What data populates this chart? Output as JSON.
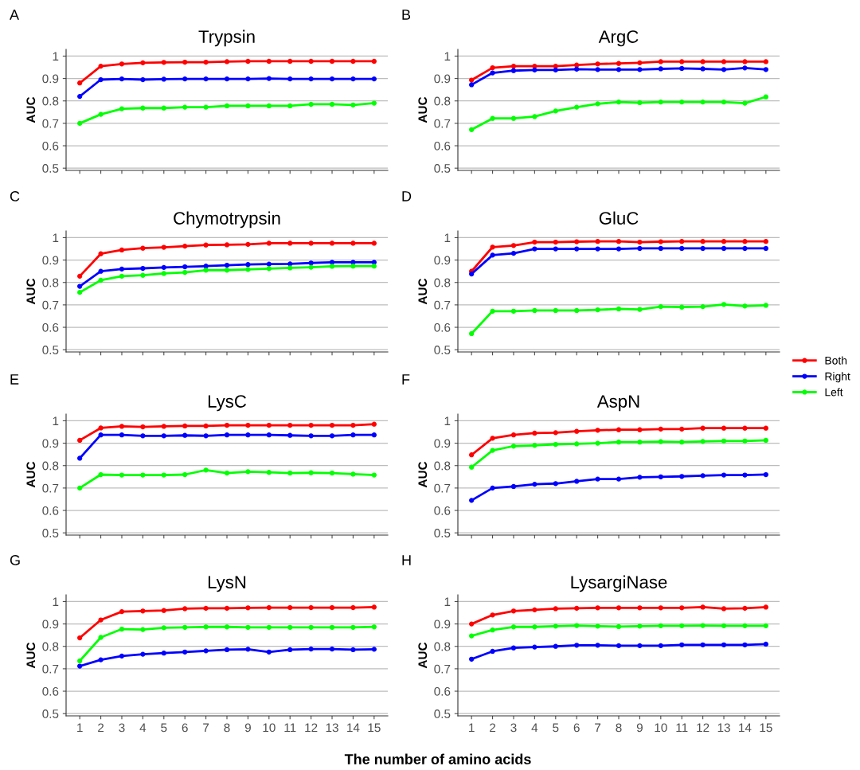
{
  "chart_data": [
    {
      "type": "line",
      "title": "Trypsin",
      "ylabel": "AUC",
      "annotations": [
        "A"
      ],
      "x": [
        1,
        2,
        3,
        4,
        5,
        6,
        7,
        8,
        9,
        10,
        11,
        12,
        13,
        14,
        15
      ],
      "xlim": [
        0.35,
        15.65
      ],
      "xticks": [
        1,
        2,
        3,
        4,
        5,
        6,
        7,
        8,
        9,
        10,
        11,
        12,
        13,
        14,
        15
      ],
      "ylim": [
        0.49,
        1.03
      ],
      "yticks": [
        0.5,
        0.6,
        0.7,
        0.8,
        0.9,
        1
      ],
      "grid": "y",
      "marker": "circle",
      "tick_labels": "y",
      "legend": "right",
      "series": [
        {
          "name": "Both",
          "color": "#ff0000",
          "values": [
            0.88,
            0.955,
            0.965,
            0.97,
            0.972,
            0.973,
            0.973,
            0.975,
            0.977,
            0.977,
            0.977,
            0.977,
            0.977,
            0.977,
            0.977
          ]
        },
        {
          "name": "Right",
          "color": "#0000ff",
          "values": [
            0.82,
            0.895,
            0.898,
            0.895,
            0.897,
            0.898,
            0.898,
            0.898,
            0.898,
            0.9,
            0.898,
            0.898,
            0.898,
            0.898,
            0.898
          ]
        },
        {
          "name": "Left",
          "color": "#00ff00",
          "values": [
            0.7,
            0.74,
            0.765,
            0.768,
            0.768,
            0.772,
            0.772,
            0.778,
            0.778,
            0.778,
            0.778,
            0.785,
            0.785,
            0.782,
            0.79
          ]
        }
      ]
    },
    {
      "type": "line",
      "title": "ArgC",
      "ylabel": "AUC",
      "annotations": [
        "B"
      ],
      "x": [
        1,
        2,
        3,
        4,
        5,
        6,
        7,
        8,
        9,
        10,
        11,
        12,
        13,
        14,
        15
      ],
      "xlim": [
        0.35,
        15.65
      ],
      "xticks": [
        1,
        2,
        3,
        4,
        5,
        6,
        7,
        8,
        9,
        10,
        11,
        12,
        13,
        14,
        15
      ],
      "ylim": [
        0.49,
        1.03
      ],
      "yticks": [
        0.5,
        0.6,
        0.7,
        0.8,
        0.9,
        1
      ],
      "grid": "y",
      "marker": "circle",
      "tick_labels": "y",
      "series": [
        {
          "color": "#ff0000",
          "values": [
            0.893,
            0.948,
            0.955,
            0.955,
            0.955,
            0.96,
            0.965,
            0.967,
            0.97,
            0.975,
            0.975,
            0.975,
            0.975,
            0.975,
            0.975
          ]
        },
        {
          "color": "#0000ff",
          "values": [
            0.872,
            0.925,
            0.935,
            0.938,
            0.938,
            0.942,
            0.94,
            0.94,
            0.94,
            0.943,
            0.945,
            0.943,
            0.94,
            0.947,
            0.94
          ]
        },
        {
          "color": "#00ff00",
          "values": [
            0.672,
            0.722,
            0.722,
            0.73,
            0.755,
            0.772,
            0.787,
            0.795,
            0.792,
            0.795,
            0.795,
            0.795,
            0.795,
            0.79,
            0.818
          ]
        }
      ]
    },
    {
      "type": "line",
      "title": "Chymotrypsin",
      "ylabel": "AUC",
      "annotations": [
        "C"
      ],
      "x": [
        1,
        2,
        3,
        4,
        5,
        6,
        7,
        8,
        9,
        10,
        11,
        12,
        13,
        14,
        15
      ],
      "xlim": [
        0.35,
        15.65
      ],
      "xticks": [
        1,
        2,
        3,
        4,
        5,
        6,
        7,
        8,
        9,
        10,
        11,
        12,
        13,
        14,
        15
      ],
      "ylim": [
        0.49,
        1.03
      ],
      "yticks": [
        0.5,
        0.6,
        0.7,
        0.8,
        0.9,
        1
      ],
      "grid": "y",
      "marker": "circle",
      "tick_labels": "y",
      "series": [
        {
          "color": "#ff0000",
          "values": [
            0.828,
            0.928,
            0.945,
            0.953,
            0.957,
            0.962,
            0.967,
            0.968,
            0.97,
            0.975,
            0.975,
            0.975,
            0.975,
            0.975,
            0.975
          ]
        },
        {
          "color": "#0000ff",
          "values": [
            0.783,
            0.85,
            0.86,
            0.863,
            0.867,
            0.87,
            0.873,
            0.877,
            0.88,
            0.882,
            0.883,
            0.887,
            0.89,
            0.89,
            0.89
          ]
        },
        {
          "color": "#00ff00",
          "values": [
            0.756,
            0.81,
            0.828,
            0.832,
            0.84,
            0.845,
            0.855,
            0.855,
            0.858,
            0.862,
            0.865,
            0.868,
            0.872,
            0.873,
            0.873
          ]
        }
      ]
    },
    {
      "type": "line",
      "title": "GluC",
      "ylabel": "AUC",
      "annotations": [
        "D"
      ],
      "x": [
        1,
        2,
        3,
        4,
        5,
        6,
        7,
        8,
        9,
        10,
        11,
        12,
        13,
        14,
        15
      ],
      "xlim": [
        0.35,
        15.65
      ],
      "xticks": [
        1,
        2,
        3,
        4,
        5,
        6,
        7,
        8,
        9,
        10,
        11,
        12,
        13,
        14,
        15
      ],
      "ylim": [
        0.49,
        1.03
      ],
      "yticks": [
        0.5,
        0.6,
        0.7,
        0.8,
        0.9,
        1
      ],
      "grid": "y",
      "marker": "circle",
      "tick_labels": "y",
      "series": [
        {
          "color": "#ff0000",
          "values": [
            0.85,
            0.958,
            0.965,
            0.98,
            0.98,
            0.982,
            0.983,
            0.983,
            0.98,
            0.982,
            0.983,
            0.983,
            0.983,
            0.983,
            0.983
          ]
        },
        {
          "color": "#0000ff",
          "values": [
            0.838,
            0.922,
            0.93,
            0.95,
            0.95,
            0.95,
            0.95,
            0.95,
            0.952,
            0.952,
            0.952,
            0.952,
            0.952,
            0.952,
            0.952
          ]
        },
        {
          "color": "#00ff00",
          "values": [
            0.572,
            0.672,
            0.672,
            0.675,
            0.675,
            0.675,
            0.678,
            0.682,
            0.68,
            0.692,
            0.69,
            0.692,
            0.702,
            0.695,
            0.698
          ]
        }
      ]
    },
    {
      "type": "line",
      "title": "LysC",
      "ylabel": "AUC",
      "annotations": [
        "E"
      ],
      "x": [
        1,
        2,
        3,
        4,
        5,
        6,
        7,
        8,
        9,
        10,
        11,
        12,
        13,
        14,
        15
      ],
      "xlim": [
        0.35,
        15.65
      ],
      "xticks": [
        1,
        2,
        3,
        4,
        5,
        6,
        7,
        8,
        9,
        10,
        11,
        12,
        13,
        14,
        15
      ],
      "ylim": [
        0.49,
        1.03
      ],
      "yticks": [
        0.5,
        0.6,
        0.7,
        0.8,
        0.9,
        1
      ],
      "grid": "y",
      "marker": "circle",
      "tick_labels": "y",
      "series": [
        {
          "color": "#ff0000",
          "values": [
            0.913,
            0.968,
            0.975,
            0.973,
            0.975,
            0.977,
            0.977,
            0.98,
            0.98,
            0.98,
            0.98,
            0.98,
            0.98,
            0.98,
            0.985
          ]
        },
        {
          "color": "#0000ff",
          "values": [
            0.833,
            0.937,
            0.937,
            0.933,
            0.933,
            0.935,
            0.933,
            0.937,
            0.937,
            0.937,
            0.935,
            0.933,
            0.933,
            0.937,
            0.937
          ]
        },
        {
          "color": "#00ff00",
          "values": [
            0.7,
            0.76,
            0.758,
            0.758,
            0.758,
            0.76,
            0.78,
            0.767,
            0.773,
            0.77,
            0.767,
            0.768,
            0.767,
            0.762,
            0.758
          ]
        }
      ]
    },
    {
      "type": "line",
      "title": "AspN",
      "ylabel": "AUC",
      "annotations": [
        "F"
      ],
      "x": [
        1,
        2,
        3,
        4,
        5,
        6,
        7,
        8,
        9,
        10,
        11,
        12,
        13,
        14,
        15
      ],
      "xlim": [
        0.35,
        15.65
      ],
      "xticks": [
        1,
        2,
        3,
        4,
        5,
        6,
        7,
        8,
        9,
        10,
        11,
        12,
        13,
        14,
        15
      ],
      "ylim": [
        0.49,
        1.03
      ],
      "yticks": [
        0.5,
        0.6,
        0.7,
        0.8,
        0.9,
        1
      ],
      "grid": "y",
      "marker": "circle",
      "tick_labels": "y",
      "series": [
        {
          "color": "#ff0000",
          "values": [
            0.848,
            0.922,
            0.937,
            0.945,
            0.947,
            0.953,
            0.958,
            0.96,
            0.96,
            0.963,
            0.963,
            0.967,
            0.967,
            0.967,
            0.967
          ]
        },
        {
          "color": "#0000ff",
          "values": [
            0.645,
            0.7,
            0.707,
            0.717,
            0.72,
            0.73,
            0.74,
            0.74,
            0.748,
            0.75,
            0.752,
            0.755,
            0.758,
            0.758,
            0.76
          ]
        },
        {
          "color": "#00ff00",
          "values": [
            0.793,
            0.868,
            0.887,
            0.89,
            0.895,
            0.897,
            0.9,
            0.905,
            0.905,
            0.907,
            0.905,
            0.908,
            0.91,
            0.91,
            0.913
          ]
        }
      ]
    },
    {
      "type": "line",
      "title": "LysN",
      "ylabel": "AUC",
      "xlabel": "The number of amino acids",
      "annotations": [
        "G"
      ],
      "x": [
        1,
        2,
        3,
        4,
        5,
        6,
        7,
        8,
        9,
        10,
        11,
        12,
        13,
        14,
        15
      ],
      "xlim": [
        0.35,
        15.65
      ],
      "xticks": [
        1,
        2,
        3,
        4,
        5,
        6,
        7,
        8,
        9,
        10,
        11,
        12,
        13,
        14,
        15
      ],
      "ylim": [
        0.49,
        1.03
      ],
      "yticks": [
        0.5,
        0.6,
        0.7,
        0.8,
        0.9,
        1
      ],
      "grid": "y",
      "marker": "circle",
      "series": [
        {
          "color": "#ff0000",
          "values": [
            0.838,
            0.918,
            0.955,
            0.958,
            0.96,
            0.968,
            0.97,
            0.97,
            0.972,
            0.973,
            0.973,
            0.973,
            0.973,
            0.973,
            0.975
          ]
        },
        {
          "color": "#0000ff",
          "values": [
            0.712,
            0.74,
            0.757,
            0.765,
            0.77,
            0.775,
            0.78,
            0.785,
            0.787,
            0.775,
            0.785,
            0.788,
            0.788,
            0.785,
            0.787
          ]
        },
        {
          "color": "#00ff00",
          "values": [
            0.735,
            0.84,
            0.877,
            0.875,
            0.883,
            0.885,
            0.887,
            0.887,
            0.885,
            0.885,
            0.885,
            0.885,
            0.885,
            0.885,
            0.887
          ]
        }
      ]
    },
    {
      "type": "line",
      "title": "LysargiNase",
      "ylabel": "AUC",
      "annotations": [
        "H"
      ],
      "x": [
        1,
        2,
        3,
        4,
        5,
        6,
        7,
        8,
        9,
        10,
        11,
        12,
        13,
        14,
        15
      ],
      "xlim": [
        0.35,
        15.65
      ],
      "xticks": [
        1,
        2,
        3,
        4,
        5,
        6,
        7,
        8,
        9,
        10,
        11,
        12,
        13,
        14,
        15
      ],
      "ylim": [
        0.49,
        1.03
      ],
      "yticks": [
        0.5,
        0.6,
        0.7,
        0.8,
        0.9,
        1
      ],
      "grid": "y",
      "marker": "circle",
      "series": [
        {
          "color": "#ff0000",
          "values": [
            0.9,
            0.94,
            0.958,
            0.963,
            0.968,
            0.97,
            0.972,
            0.972,
            0.972,
            0.972,
            0.972,
            0.975,
            0.968,
            0.97,
            0.975
          ]
        },
        {
          "color": "#0000ff",
          "values": [
            0.743,
            0.778,
            0.793,
            0.797,
            0.8,
            0.805,
            0.805,
            0.803,
            0.803,
            0.803,
            0.807,
            0.807,
            0.807,
            0.807,
            0.81
          ]
        },
        {
          "color": "#00ff00",
          "values": [
            0.847,
            0.873,
            0.887,
            0.887,
            0.89,
            0.893,
            0.89,
            0.888,
            0.89,
            0.892,
            0.892,
            0.893,
            0.892,
            0.892,
            0.892
          ]
        }
      ]
    }
  ]
}
